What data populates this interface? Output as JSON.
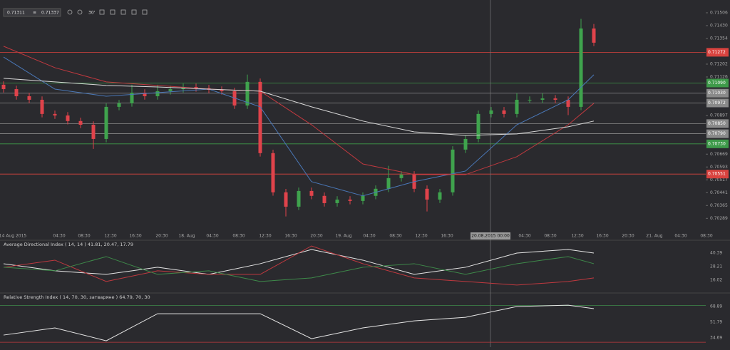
{
  "header": {
    "bid": "0.71311",
    "ask": "0.71337",
    "zoom": "30'"
  },
  "price_panel": {
    "ylim": [
      0.7021,
      0.71548
    ],
    "yticks": [
      0.71506,
      {
        "value": 0.7143,
        "label": "0.71430"
      },
      0.71354,
      0.71202,
      0.71126,
      0.70897,
      0.70669,
      0.70593,
      0.70517,
      0.70441,
      0.70365,
      0.70289
    ],
    "candles": [
      [
        0.7108,
        0.711,
        0.71034,
        0.71054
      ],
      [
        0.71054,
        0.71074,
        0.70992,
        0.71012
      ],
      [
        0.71012,
        0.71032,
        0.70971,
        0.70991
      ],
      [
        0.70991,
        0.71011,
        0.70887,
        0.70907
      ],
      [
        0.70907,
        0.70927,
        0.70878,
        0.70898
      ],
      [
        0.70898,
        0.70918,
        0.70845,
        0.70865
      ],
      [
        0.70865,
        0.70885,
        0.70823,
        0.70843
      ],
      [
        0.70843,
        0.70863,
        0.707,
        0.70759
      ],
      [
        0.70759,
        0.70969,
        0.70739,
        0.70949
      ],
      [
        0.70949,
        0.7099,
        0.70929,
        0.7097
      ],
      [
        0.7097,
        0.7108,
        0.7095,
        0.71033
      ],
      [
        0.71033,
        0.71053,
        0.70992,
        0.71012
      ],
      [
        0.71012,
        0.7108,
        0.70992,
        0.71042
      ],
      [
        0.71042,
        0.71074,
        0.71022,
        0.71054
      ],
      [
        0.71054,
        0.71087,
        0.71034,
        0.71067
      ],
      [
        0.71067,
        0.71087,
        0.71039,
        0.71059
      ],
      [
        0.71059,
        0.71079,
        0.7103,
        0.7105
      ],
      [
        0.7105,
        0.7107,
        0.71022,
        0.71042
      ],
      [
        0.71042,
        0.71062,
        0.70937,
        0.70957
      ],
      [
        0.70957,
        0.7114,
        0.70937,
        0.71097
      ],
      [
        0.71097,
        0.71117,
        0.70655,
        0.70675
      ],
      [
        0.70675,
        0.70695,
        0.70423,
        0.70443
      ],
      [
        0.70443,
        0.70463,
        0.703,
        0.70358
      ],
      [
        0.70358,
        0.70471,
        0.70338,
        0.70451
      ],
      [
        0.70451,
        0.70471,
        0.70402,
        0.70422
      ],
      [
        0.70422,
        0.70442,
        0.70359,
        0.70379
      ],
      [
        0.70379,
        0.7042,
        0.70359,
        0.704
      ],
      [
        0.704,
        0.7042,
        0.70372,
        0.70392
      ],
      [
        0.70392,
        0.70442,
        0.70372,
        0.70422
      ],
      [
        0.70422,
        0.70484,
        0.70402,
        0.70464
      ],
      [
        0.70464,
        0.706,
        0.70444,
        0.70527
      ],
      [
        0.70527,
        0.70568,
        0.70507,
        0.70548
      ],
      [
        0.70548,
        0.70568,
        0.70444,
        0.70464
      ],
      [
        0.70464,
        0.70484,
        0.7033,
        0.704
      ],
      [
        0.704,
        0.70463,
        0.7038,
        0.70443
      ],
      [
        0.70443,
        0.70716,
        0.70423,
        0.70696
      ],
      [
        0.70696,
        0.70779,
        0.70676,
        0.70759
      ],
      [
        0.70759,
        0.70927,
        0.70739,
        0.70907
      ],
      [
        0.70907,
        0.70948,
        0.70887,
        0.70928
      ],
      [
        0.70928,
        0.70948,
        0.70887,
        0.70907
      ],
      [
        0.70907,
        0.7103,
        0.70887,
        0.70991
      ],
      [
        0.70991,
        0.71011,
        0.70971,
        0.70991
      ],
      [
        0.70991,
        0.7103,
        0.70971,
        0.70999
      ],
      [
        0.70999,
        0.71019,
        0.70971,
        0.70991
      ],
      [
        0.70991,
        0.71011,
        0.709,
        0.70949
      ],
      [
        0.70949,
        0.7147,
        0.70929,
        0.71413
      ],
      [
        0.71413,
        0.7144,
        0.71309,
        0.71329
      ]
    ],
    "up_color": "#3fa34d",
    "down_color": "#e0434b",
    "ma_index": [
      0,
      4,
      8,
      12,
      16,
      20,
      24,
      28,
      32,
      36,
      40,
      44,
      46
    ],
    "moving_averages": [
      {
        "color": "#4a78b8",
        "values": [
          0.71244,
          0.71054,
          0.71012,
          0.71033,
          0.71054,
          0.70949,
          0.70506,
          0.70422,
          0.70506,
          0.70569,
          0.70843,
          0.70991,
          0.71139
        ]
      },
      {
        "color": "#c0393f",
        "values": [
          0.71308,
          0.71181,
          0.71097,
          0.71076,
          0.71054,
          0.71042,
          0.70843,
          0.70611,
          0.70548,
          0.70548,
          0.70654,
          0.70843,
          0.7097
        ]
      },
      {
        "color": "#d8d8d8",
        "values": [
          0.71118,
          0.71097,
          0.71076,
          0.71067,
          0.71054,
          0.71042,
          0.70949,
          0.70865,
          0.70801,
          0.7078,
          0.70789,
          0.70831,
          0.70865
        ]
      }
    ],
    "levels": [
      {
        "value": 0.71272,
        "label": "0.71272",
        "color": "#d9433f"
      },
      {
        "value": 0.7109,
        "label": "0.71090",
        "color": "#3e9a4a"
      },
      {
        "value": 0.7103,
        "label": "0.71030",
        "color": "#8a8a8a"
      },
      {
        "value": 0.70972,
        "label": "0.70972",
        "color": "#8a8a8a"
      },
      {
        "value": 0.7085,
        "label": "0.70850",
        "color": "#8a8a8a"
      },
      {
        "value": 0.7079,
        "label": "0.70790",
        "color": "#8a8a8a"
      },
      {
        "value": 0.7073,
        "label": "0.70730",
        "color": "#3e9a4a"
      },
      {
        "value": 0.70551,
        "label": "0.70551",
        "color": "#d9433f"
      }
    ]
  },
  "time_labels": [
    "14 Aug 2015",
    "04:30",
    "08:30",
    "12:30",
    "16:30",
    "20:30",
    "18. Aug",
    "04:30",
    "08:30",
    "12:30",
    "16:30",
    "20:30",
    "19. Aug",
    "04:30",
    "08:30",
    "12:30",
    "16:30",
    "04:30",
    "08:30",
    "12:30",
    "16:30",
    "20:30",
    "21. Aug",
    "04:30",
    "08:30"
  ],
  "crosshair_label": "20.08.2015 00:00",
  "adx_panel": {
    "title": "Average Directional Index ( 14, 14 ) 41.81, 20.47, 17.79",
    "ylim": [
      6.4,
      50.0
    ],
    "yticks": [
      40.39,
      28.21,
      16.02
    ],
    "series": [
      {
        "color": "#e6e6e6",
        "values": [
          30.8,
          24.4,
          21.2,
          27.6,
          21.2,
          30.8,
          43.6,
          34.0,
          21.2,
          27.6,
          40.4,
          43.6,
          40.4
        ]
      },
      {
        "color": "#c0393f",
        "values": [
          27.6,
          34.0,
          14.8,
          24.4,
          21.2,
          21.2,
          46.8,
          30.8,
          18.0,
          14.8,
          11.6,
          14.8,
          18.0
        ]
      },
      {
        "color": "#3e8a4a",
        "values": [
          27.6,
          24.4,
          37.2,
          21.2,
          24.4,
          14.8,
          18.0,
          27.6,
          30.8,
          21.2,
          30.8,
          37.2,
          30.8
        ]
      }
    ]
  },
  "rsi_panel": {
    "title": "Relative Strength Index ( 14, 70, 30, затваряне ) 64.79, 70, 30",
    "ylim": [
      26.2,
      82.9
    ],
    "yticks": [
      68.89,
      51.79,
      34.69
    ],
    "levels": [
      {
        "value": 70,
        "color": "#3e8a4a"
      },
      {
        "value": 30,
        "color": "#c0393f"
      }
    ],
    "values": [
      37.8,
      45.6,
      31.6,
      61.1,
      61.1,
      61.1,
      33.9,
      45.6,
      53.3,
      57.2,
      68.89,
      70.4,
      66.6
    ],
    "color": "#e6e6e6"
  }
}
